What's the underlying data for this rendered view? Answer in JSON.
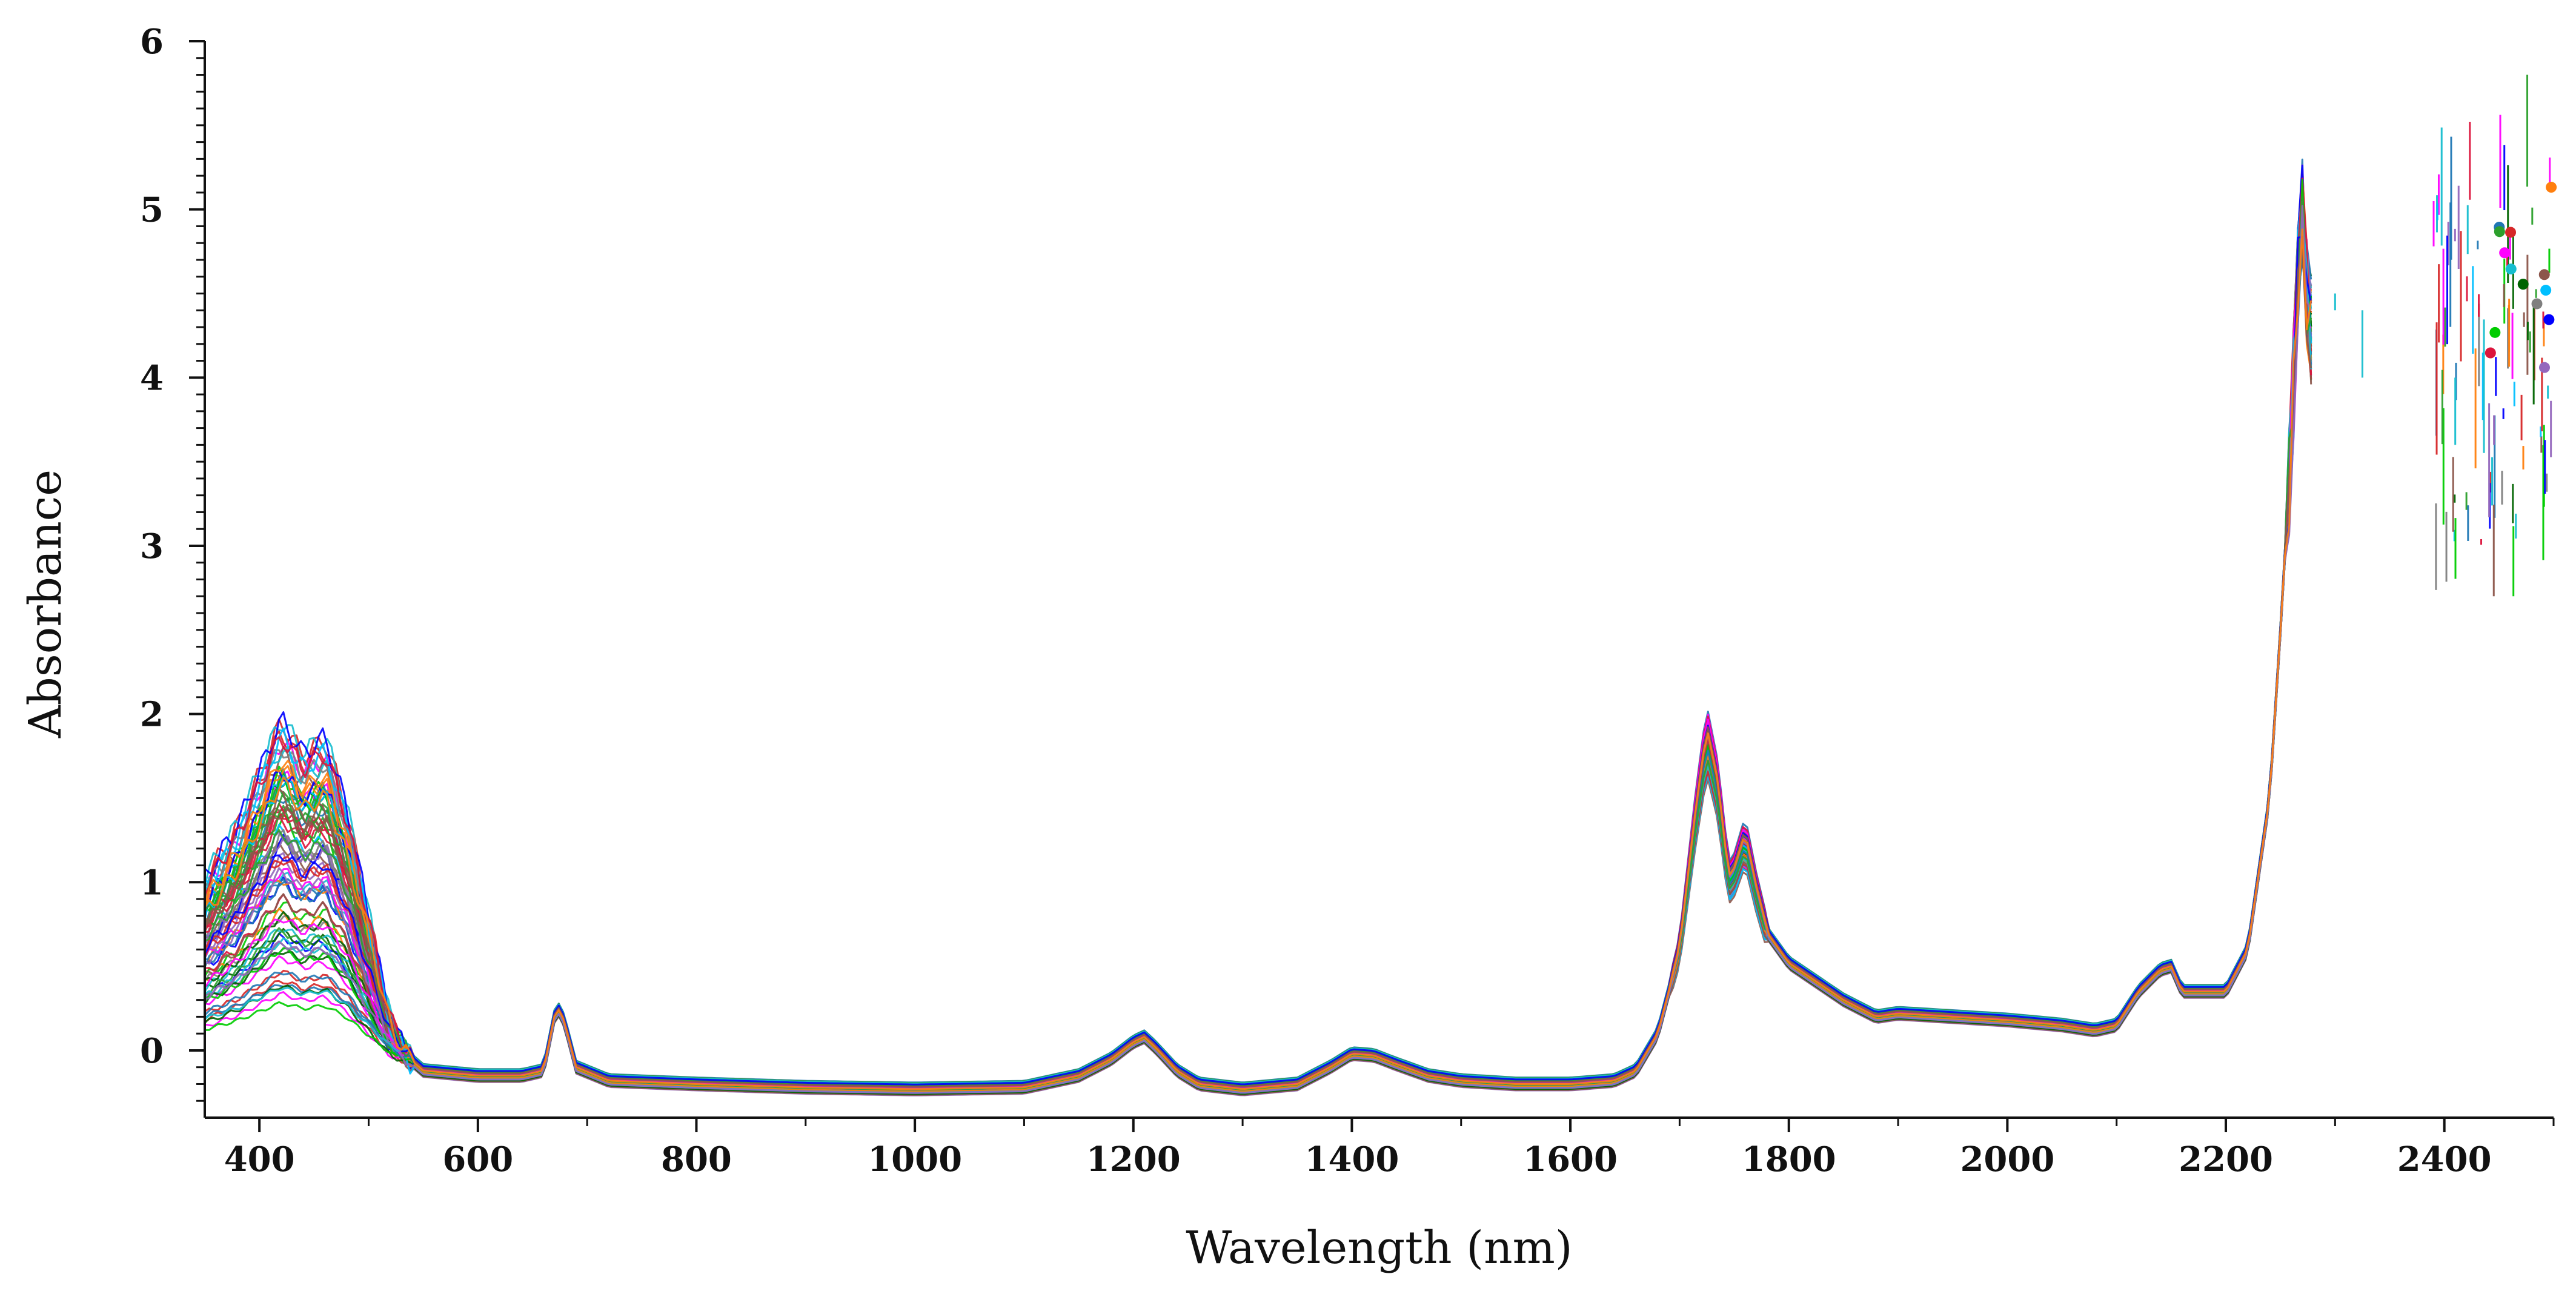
{
  "chart_data": {
    "type": "line",
    "title": "",
    "xlabel": "Wavelength (nm)",
    "ylabel": "Absorbance",
    "xlim": [
      350,
      2500
    ],
    "ylim": [
      -0.4,
      6
    ],
    "xticks": [
      400,
      600,
      800,
      1000,
      1200,
      1400,
      1600,
      1800,
      2000,
      2200,
      2400
    ],
    "yticks": [
      0,
      1,
      2,
      3,
      4,
      5,
      6
    ],
    "grid": false,
    "legend": "none",
    "series_count": 80,
    "palette": [
      "#00cc00",
      "#1f77b4",
      "#d62728",
      "#ff00ff",
      "#17becf",
      "#2ca02c",
      "#0000ff",
      "#8c564b",
      "#9467bd",
      "#ff7f0e",
      "#7f7f7f",
      "#006400",
      "#00bfff",
      "#dc143c"
    ],
    "representative_spectrum": {
      "x": [
        350,
        380,
        400,
        420,
        440,
        460,
        480,
        500,
        520,
        550,
        600,
        640,
        660,
        670,
        675,
        680,
        690,
        720,
        800,
        900,
        1000,
        1100,
        1150,
        1180,
        1200,
        1210,
        1220,
        1240,
        1260,
        1300,
        1350,
        1380,
        1400,
        1420,
        1440,
        1470,
        1500,
        1550,
        1600,
        1640,
        1660,
        1680,
        1700,
        1715,
        1725,
        1735,
        1745,
        1750,
        1760,
        1770,
        1780,
        1800,
        1850,
        1880,
        1900,
        1950,
        2000,
        2050,
        2080,
        2100,
        2120,
        2140,
        2150,
        2160,
        2170,
        2200,
        2220,
        2240,
        2250,
        2260,
        2265,
        2270,
        2275,
        2280
      ],
      "y": [
        0.45,
        0.6,
        0.75,
        0.9,
        0.8,
        0.85,
        0.65,
        0.35,
        0.05,
        -0.12,
        -0.15,
        -0.15,
        -0.12,
        0.2,
        0.25,
        0.15,
        -0.1,
        -0.18,
        -0.2,
        -0.22,
        -0.23,
        -0.22,
        -0.15,
        -0.05,
        0.05,
        0.08,
        0.02,
        -0.12,
        -0.2,
        -0.23,
        -0.2,
        -0.1,
        -0.02,
        -0.03,
        -0.08,
        -0.15,
        -0.18,
        -0.2,
        -0.2,
        -0.18,
        -0.12,
        0.1,
        0.6,
        1.4,
        1.85,
        1.55,
        1.0,
        1.05,
        1.25,
        0.95,
        0.7,
        0.52,
        0.3,
        0.2,
        0.22,
        0.2,
        0.18,
        0.15,
        0.12,
        0.15,
        0.35,
        0.48,
        0.5,
        0.35,
        0.35,
        0.35,
        0.6,
        1.5,
        2.5,
        3.6,
        4.5,
        5.0,
        4.4,
        4.2
      ]
    }
  }
}
